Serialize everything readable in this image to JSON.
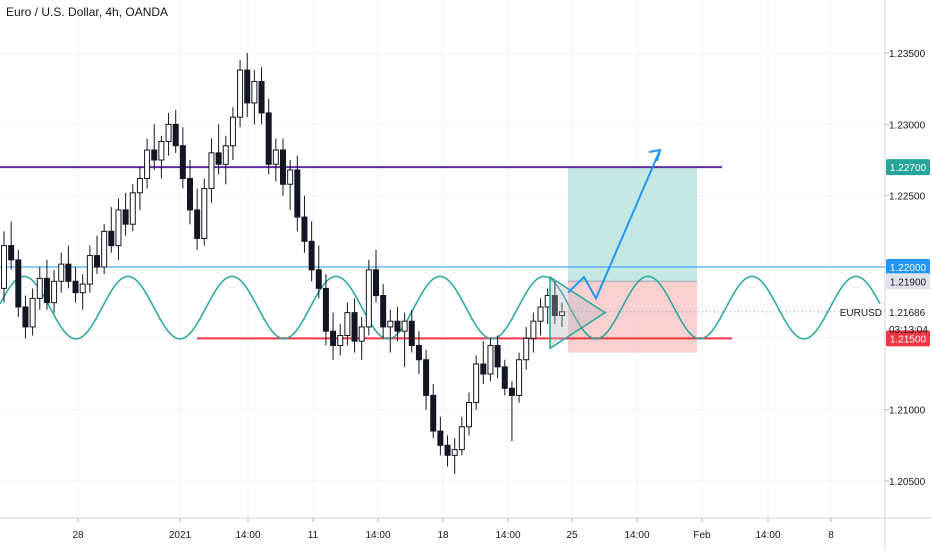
{
  "header": {
    "title": "Euro / U.S. Dollar, 4h, OANDA"
  },
  "colors": {
    "up_candle": "#ffffff",
    "down_candle": "#131722",
    "resistance_line": "#5b2ea6",
    "support_line": "#f23645",
    "horizontal_blue": "#2196f3",
    "sine_wave": "#26a69a",
    "target_zone": "#b2dfdb",
    "stop_zone": "#f8c9c9",
    "projection_arrow": "#2196f3",
    "triangle": "#9aa5b1"
  },
  "chart_data": {
    "type": "candlestick",
    "symbol": "EURUSD",
    "timeframe": "4h",
    "ylim": [
      1.2025,
      1.2395
    ],
    "y_ticks": [
      "1.23500",
      "1.23000",
      "1.22500",
      "1.22000",
      "1.21500",
      "1.21000",
      "1.20500"
    ],
    "x_ticks": [
      "28",
      "2021",
      "14:00",
      "11",
      "14:00",
      "18",
      "14:00",
      "25",
      "14:00",
      "Feb",
      "14:00",
      "8"
    ],
    "price_tags": [
      {
        "label": "1.22700",
        "value": 1.227,
        "style": "teal"
      },
      {
        "label": "1.22000",
        "value": 1.22,
        "style": "blue"
      },
      {
        "label": "1.21900",
        "value": 1.219,
        "style": "grey"
      },
      {
        "label": "1.21500",
        "value": 1.215,
        "style": "red"
      }
    ],
    "last_price": {
      "symbol": "EURUSD",
      "value": "1.21686",
      "countdown": "03:13:04"
    },
    "levels": [
      {
        "name": "resistance",
        "price": 1.227
      },
      {
        "name": "blue-level",
        "price": 1.22
      },
      {
        "name": "support",
        "price": 1.215
      }
    ],
    "position": {
      "entry": 1.219,
      "target": 1.227,
      "stop": 1.214
    },
    "candles_ohlc": [
      [
        1.2185,
        1.2225,
        1.2175,
        1.2215
      ],
      [
        1.2215,
        1.2232,
        1.2198,
        1.2205
      ],
      [
        1.2205,
        1.2212,
        1.2165,
        1.2172
      ],
      [
        1.2172,
        1.218,
        1.215,
        1.2158
      ],
      [
        1.2158,
        1.2185,
        1.2152,
        1.2178
      ],
      [
        1.2178,
        1.22,
        1.217,
        1.2192
      ],
      [
        1.2192,
        1.2205,
        1.217,
        1.2175
      ],
      [
        1.2175,
        1.2198,
        1.2168,
        1.219
      ],
      [
        1.219,
        1.221,
        1.2182,
        1.2202
      ],
      [
        1.2202,
        1.2215,
        1.2185,
        1.219
      ],
      [
        1.219,
        1.22,
        1.2175,
        1.2182
      ],
      [
        1.2182,
        1.2195,
        1.217,
        1.2188
      ],
      [
        1.2188,
        1.2215,
        1.2182,
        1.2208
      ],
      [
        1.2208,
        1.2222,
        1.2195,
        1.22
      ],
      [
        1.22,
        1.223,
        1.2195,
        1.2225
      ],
      [
        1.2225,
        1.2242,
        1.221,
        1.2215
      ],
      [
        1.2215,
        1.2248,
        1.2205,
        1.224
      ],
      [
        1.224,
        1.2252,
        1.2222,
        1.223
      ],
      [
        1.223,
        1.2258,
        1.2225,
        1.2252
      ],
      [
        1.2252,
        1.227,
        1.224,
        1.2262
      ],
      [
        1.2262,
        1.229,
        1.2255,
        1.2282
      ],
      [
        1.2282,
        1.23,
        1.2268,
        1.2275
      ],
      [
        1.2275,
        1.2292,
        1.2262,
        1.2288
      ],
      [
        1.2288,
        1.2308,
        1.2278,
        1.23
      ],
      [
        1.23,
        1.231,
        1.228,
        1.2285
      ],
      [
        1.2285,
        1.2298,
        1.2255,
        1.2262
      ],
      [
        1.2262,
        1.2275,
        1.223,
        1.224
      ],
      [
        1.224,
        1.2255,
        1.2212,
        1.222
      ],
      [
        1.222,
        1.2262,
        1.2215,
        1.2255
      ],
      [
        1.2255,
        1.229,
        1.2245,
        1.228
      ],
      [
        1.228,
        1.23,
        1.2265,
        1.2272
      ],
      [
        1.2272,
        1.2292,
        1.2258,
        1.2285
      ],
      [
        1.2285,
        1.2312,
        1.2275,
        1.2305
      ],
      [
        1.2305,
        1.2345,
        1.2298,
        1.2338
      ],
      [
        1.2338,
        1.235,
        1.2305,
        1.2315
      ],
      [
        1.2315,
        1.2338,
        1.23,
        1.233
      ],
      [
        1.233,
        1.234,
        1.23,
        1.2308
      ],
      [
        1.2308,
        1.2318,
        1.2265,
        1.2272
      ],
      [
        1.2272,
        1.229,
        1.226,
        1.2282
      ],
      [
        1.2282,
        1.229,
        1.225,
        1.2258
      ],
      [
        1.2258,
        1.2275,
        1.224,
        1.2268
      ],
      [
        1.2268,
        1.2278,
        1.2225,
        1.2235
      ],
      [
        1.2235,
        1.225,
        1.221,
        1.2218
      ],
      [
        1.2218,
        1.2232,
        1.219,
        1.2198
      ],
      [
        1.2198,
        1.2215,
        1.2178,
        1.2185
      ],
      [
        1.2185,
        1.2195,
        1.2145,
        1.2155
      ],
      [
        1.2155,
        1.2168,
        1.2135,
        1.2145
      ],
      [
        1.2145,
        1.216,
        1.2138,
        1.2152
      ],
      [
        1.2152,
        1.2175,
        1.2145,
        1.2168
      ],
      [
        1.2168,
        1.2178,
        1.214,
        1.2148
      ],
      [
        1.2148,
        1.2165,
        1.2135,
        1.2158
      ],
      [
        1.2158,
        1.2205,
        1.2152,
        1.2198
      ],
      [
        1.2198,
        1.2212,
        1.2175,
        1.218
      ],
      [
        1.218,
        1.2188,
        1.215,
        1.2158
      ],
      [
        1.2158,
        1.217,
        1.214,
        1.2162
      ],
      [
        1.2162,
        1.2172,
        1.2148,
        1.2155
      ],
      [
        1.2155,
        1.2168,
        1.213,
        1.2162
      ],
      [
        1.2162,
        1.217,
        1.214,
        1.2145
      ],
      [
        1.2145,
        1.2155,
        1.2125,
        1.2135
      ],
      [
        1.2135,
        1.2142,
        1.21,
        1.211
      ],
      [
        1.211,
        1.2118,
        1.208,
        1.2085
      ],
      [
        1.2085,
        1.2095,
        1.2068,
        1.2075
      ],
      [
        1.2075,
        1.2082,
        1.206,
        1.2068
      ],
      [
        1.2068,
        1.208,
        1.2055,
        1.2072
      ],
      [
        1.2072,
        1.2095,
        1.2068,
        1.2088
      ],
      [
        1.2088,
        1.2112,
        1.2082,
        1.2105
      ],
      [
        1.2105,
        1.2138,
        1.21,
        1.2132
      ],
      [
        1.2132,
        1.2148,
        1.2118,
        1.2125
      ],
      [
        1.2125,
        1.215,
        1.212,
        1.2145
      ],
      [
        1.2145,
        1.2152,
        1.2122,
        1.213
      ],
      [
        1.213,
        1.2135,
        1.211,
        1.2115
      ],
      [
        1.2115,
        1.212,
        1.2078,
        1.211
      ],
      [
        1.211,
        1.214,
        1.2105,
        1.2135
      ],
      [
        1.2135,
        1.2158,
        1.2128,
        1.215
      ],
      [
        1.215,
        1.2168,
        1.214,
        1.2162
      ],
      [
        1.2162,
        1.2178,
        1.2152,
        1.2172
      ],
      [
        1.2172,
        1.2185,
        1.216,
        1.218
      ],
      [
        1.218,
        1.219,
        1.216,
        1.2166
      ],
      [
        1.2166,
        1.2175,
        1.2158,
        1.21686
      ]
    ]
  }
}
